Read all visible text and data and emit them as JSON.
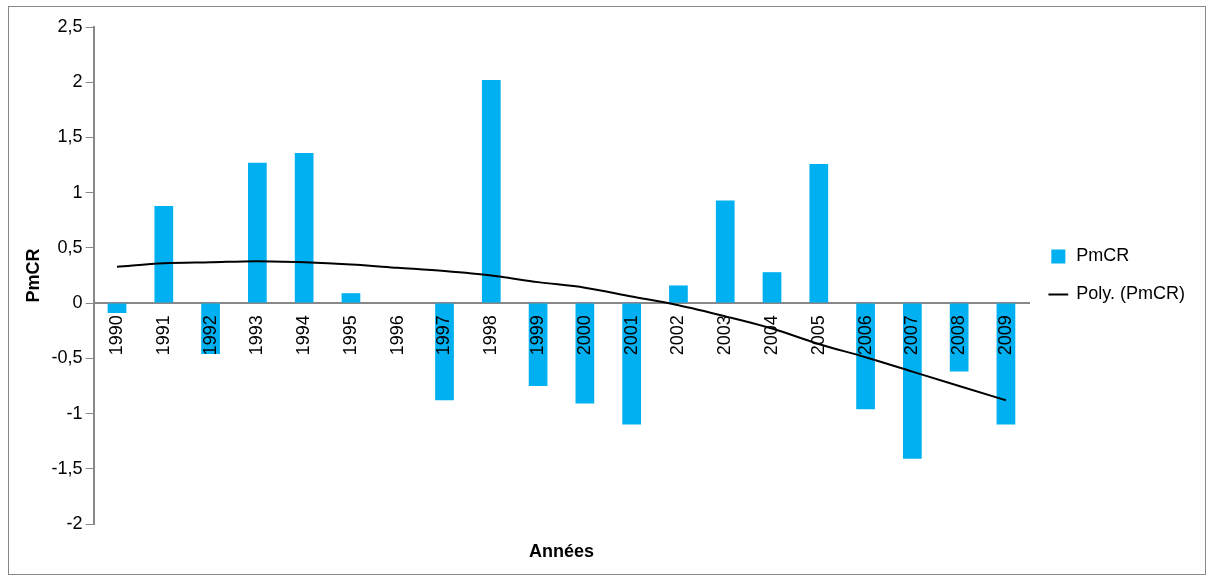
{
  "chart_data": {
    "type": "bar",
    "xlabel": "Années",
    "ylabel": "PmCR",
    "categories": [
      "1990",
      "1991",
      "1992",
      "1993",
      "1994",
      "1995",
      "1996",
      "1997",
      "1998",
      "1999",
      "2000",
      "2001",
      "2002",
      "2003",
      "2004",
      "2005",
      "2006",
      "2007",
      "2008",
      "2009"
    ],
    "series": [
      {
        "name": "PmCR",
        "color": "#00b0f0",
        "values": [
          -0.09,
          0.88,
          -0.46,
          1.27,
          1.36,
          0.09,
          0,
          -0.88,
          2.02,
          -0.75,
          -0.91,
          -1.1,
          0.16,
          0.93,
          0.28,
          1.26,
          -0.96,
          -1.41,
          -0.62,
          -1.1
        ]
      },
      {
        "type": "line",
        "name": "Poly. (PmCR)",
        "color": "#000000",
        "values": [
          0.33,
          0.36,
          0.37,
          0.38,
          0.37,
          0.35,
          0.32,
          0.29,
          0.25,
          0.19,
          0.14,
          0.06,
          -0.02,
          -0.12,
          -0.23,
          -0.37,
          -0.49,
          -0.62,
          -0.75,
          -0.88
        ]
      }
    ],
    "ylim": [
      -2,
      2.5
    ],
    "yticks": [
      -2,
      {
        "value": -1.5,
        "label": "-1,5"
      },
      -1,
      {
        "value": -0.5,
        "label": "-0,5"
      },
      0,
      {
        "value": 0.5,
        "label": "0,5"
      },
      1,
      {
        "value": 1.5,
        "label": "1,5"
      },
      2,
      {
        "value": 2.5,
        "label": "2,5"
      }
    ],
    "grid": false,
    "legend": "right"
  }
}
